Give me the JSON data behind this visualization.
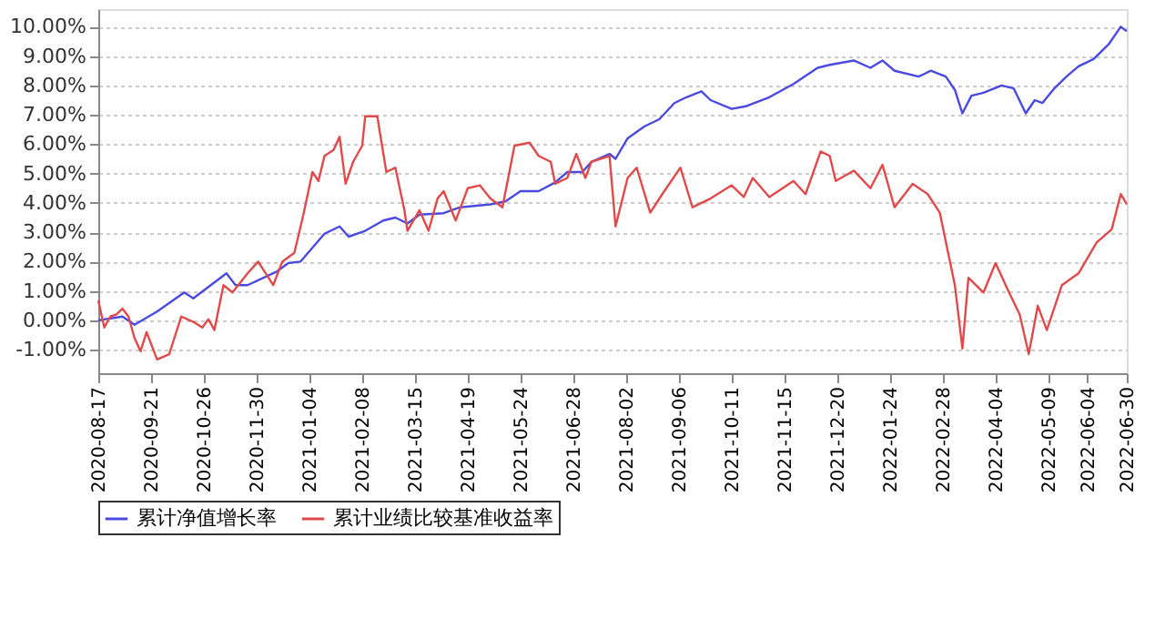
{
  "chart_data": {
    "type": "line",
    "xlim": [
      "2020-08-17",
      "2022-06-30"
    ],
    "xticks": [
      "2020-08-17",
      "2020-09-21",
      "2020-10-26",
      "2020-11-30",
      "2021-01-04",
      "2021-02-08",
      "2021-03-15",
      "2021-04-19",
      "2021-05-24",
      "2021-06-28",
      "2021-08-02",
      "2021-09-06",
      "2021-10-11",
      "2021-11-15",
      "2021-12-20",
      "2022-01-24",
      "2022-02-28",
      "2022-04-04",
      "2022-05-09",
      "2022-06-04",
      "2022-06-30"
    ],
    "ylim": [
      -1.8,
      10.6
    ],
    "yticks": [
      {
        "value": -1,
        "label": "-1.00%"
      },
      {
        "value": 0,
        "label": "0.00%"
      },
      {
        "value": 1,
        "label": "1.00%"
      },
      {
        "value": 2,
        "label": "2.00%"
      },
      {
        "value": 3,
        "label": "3.00%"
      },
      {
        "value": 4,
        "label": "4.00%"
      },
      {
        "value": 5,
        "label": "5.00%"
      },
      {
        "value": 6,
        "label": "6.00%"
      },
      {
        "value": 7,
        "label": "7.00%"
      },
      {
        "value": 8,
        "label": "8.00%"
      },
      {
        "value": 9,
        "label": "9.00%"
      },
      {
        "value": 10,
        "label": "10.00%"
      }
    ],
    "grid": "y",
    "legend": "bottom",
    "line_style": "solid",
    "series": [
      {
        "name": "累计净值增长率",
        "color": "#4a4ae0",
        "x": [
          "2020-08-17",
          "2020-09-02",
          "2020-09-10",
          "2020-09-25",
          "2020-10-13",
          "2020-10-19",
          "2020-11-10",
          "2020-11-16",
          "2020-11-24",
          "2020-12-13",
          "2020-12-21",
          "2020-12-29",
          "2021-01-14",
          "2021-01-24",
          "2021-01-30",
          "2021-02-10",
          "2021-02-22",
          "2021-03-02",
          "2021-03-10",
          "2021-03-18",
          "2021-04-03",
          "2021-04-14",
          "2021-05-04",
          "2021-05-14",
          "2021-05-24",
          "2021-06-05",
          "2021-06-16",
          "2021-06-24",
          "2021-07-04",
          "2021-07-10",
          "2021-07-22",
          "2021-07-26",
          "2021-08-03",
          "2021-08-14",
          "2021-08-24",
          "2021-09-03",
          "2021-09-11",
          "2021-09-21",
          "2021-09-27",
          "2021-10-11",
          "2021-10-21",
          "2021-11-05",
          "2021-11-21",
          "2021-12-07",
          "2021-12-15",
          "2021-12-31",
          "2022-01-11",
          "2022-01-19",
          "2022-01-27",
          "2022-02-12",
          "2022-02-20",
          "2022-03-02",
          "2022-03-08",
          "2022-03-13",
          "2022-03-19",
          "2022-03-27",
          "2022-04-08",
          "2022-04-16",
          "2022-04-24",
          "2022-04-30",
          "2022-05-05",
          "2022-05-13",
          "2022-05-21",
          "2022-05-29",
          "2022-06-08",
          "2022-06-18",
          "2022-06-26",
          "2022-06-30"
        ],
        "values": [
          0,
          0.13,
          -0.15,
          0.3,
          0.95,
          0.75,
          1.6,
          1.2,
          1.2,
          1.65,
          1.95,
          2.0,
          2.95,
          3.2,
          2.85,
          3.05,
          3.4,
          3.5,
          3.3,
          3.6,
          3.65,
          3.85,
          3.95,
          4.05,
          4.4,
          4.4,
          4.7,
          5.05,
          5.05,
          5.4,
          5.67,
          5.5,
          6.2,
          6.6,
          6.85,
          7.4,
          7.6,
          7.8,
          7.5,
          7.2,
          7.3,
          7.6,
          8.05,
          8.6,
          8.7,
          8.85,
          8.6,
          8.85,
          8.5,
          8.3,
          8.5,
          8.3,
          7.85,
          7.05,
          7.65,
          7.75,
          8.0,
          7.9,
          7.05,
          7.5,
          7.4,
          7.9,
          8.3,
          8.65,
          8.9,
          9.4,
          10.0,
          9.85
        ]
      },
      {
        "name": "累计业绩比较基准收益率",
        "color": "#e04a4a",
        "x": [
          "2020-08-17",
          "2020-08-21",
          "2020-08-25",
          "2020-08-29",
          "2020-09-02",
          "2020-09-06",
          "2020-09-10",
          "2020-09-14",
          "2020-09-18",
          "2020-09-25",
          "2020-10-03",
          "2020-10-11",
          "2020-10-19",
          "2020-10-25",
          "2020-10-29",
          "2020-11-02",
          "2020-11-08",
          "2020-11-14",
          "2020-11-24",
          "2020-12-01",
          "2020-12-11",
          "2020-12-17",
          "2020-12-25",
          "2020-12-31",
          "2021-01-06",
          "2021-01-10",
          "2021-01-14",
          "2021-01-20",
          "2021-01-24",
          "2021-01-28",
          "2021-02-02",
          "2021-02-08",
          "2021-02-10",
          "2021-02-18",
          "2021-02-24",
          "2021-03-02",
          "2021-03-08",
          "2021-03-10",
          "2021-03-18",
          "2021-03-24",
          "2021-03-30",
          "2021-04-03",
          "2021-04-11",
          "2021-04-19",
          "2021-04-27",
          "2021-05-04",
          "2021-05-12",
          "2021-05-20",
          "2021-05-30",
          "2021-06-05",
          "2021-06-13",
          "2021-06-16",
          "2021-06-24",
          "2021-06-30",
          "2021-07-06",
          "2021-07-10",
          "2021-07-22",
          "2021-07-26",
          "2021-08-03",
          "2021-08-09",
          "2021-08-18",
          "2021-08-26",
          "2021-09-07",
          "2021-09-15",
          "2021-09-27",
          "2021-10-11",
          "2021-10-19",
          "2021-10-25",
          "2021-11-05",
          "2021-11-21",
          "2021-11-29",
          "2021-12-09",
          "2021-12-15",
          "2021-12-19",
          "2021-12-31",
          "2022-01-11",
          "2022-01-19",
          "2022-01-27",
          "2022-02-08",
          "2022-02-18",
          "2022-02-26",
          "2022-03-08",
          "2022-03-13",
          "2022-03-17",
          "2022-03-27",
          "2022-04-04",
          "2022-04-12",
          "2022-04-20",
          "2022-04-26",
          "2022-05-02",
          "2022-05-08",
          "2022-05-18",
          "2022-05-29",
          "2022-06-10",
          "2022-06-20",
          "2022-06-26",
          "2022-06-30"
        ],
        "values": [
          0.67,
          -0.24,
          0.13,
          0.2,
          0.4,
          0.13,
          -0.6,
          -1.05,
          -0.4,
          -1.33,
          -1.15,
          0.13,
          -0.05,
          -0.24,
          0.04,
          -0.33,
          1.2,
          0.95,
          1.6,
          2.0,
          1.2,
          2.0,
          2.3,
          3.6,
          5.05,
          4.75,
          5.6,
          5.8,
          6.25,
          4.65,
          5.4,
          5.95,
          6.95,
          6.95,
          5.05,
          5.2,
          3.75,
          3.05,
          3.75,
          3.05,
          4.15,
          4.4,
          3.4,
          4.5,
          4.6,
          4.15,
          3.85,
          5.95,
          6.05,
          5.6,
          5.4,
          4.65,
          4.85,
          5.67,
          4.85,
          5.4,
          5.6,
          3.2,
          4.85,
          5.2,
          3.67,
          4.3,
          5.2,
          3.85,
          4.15,
          4.6,
          4.2,
          4.85,
          4.2,
          4.75,
          4.3,
          5.75,
          5.6,
          4.75,
          5.1,
          4.5,
          5.3,
          3.85,
          4.65,
          4.3,
          3.67,
          1.2,
          -0.96,
          1.45,
          0.95,
          1.95,
          1.05,
          0.2,
          -1.15,
          0.5,
          -0.33,
          1.2,
          1.6,
          2.65,
          3.1,
          4.3,
          3.95
        ]
      }
    ]
  }
}
